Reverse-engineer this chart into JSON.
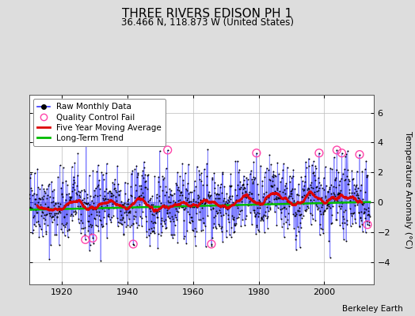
{
  "title": "THREE RIVERS EDISON PH 1",
  "subtitle": "36.466 N, 118.873 W (United States)",
  "ylabel": "Temperature Anomaly (°C)",
  "attribution": "Berkeley Earth",
  "year_start": 1910,
  "year_end": 2014,
  "ylim": [
    -5.5,
    7.2
  ],
  "yticks": [
    -4,
    -2,
    0,
    2,
    4,
    6
  ],
  "xticks": [
    1920,
    1940,
    1960,
    1980,
    2000
  ],
  "xlim_start": 1910,
  "xlim_end": 2015,
  "background_color": "#dddddd",
  "plot_bg_color": "#ffffff",
  "raw_line_color": "#3333ff",
  "raw_dot_color": "#000000",
  "moving_avg_color": "#dd0000",
  "trend_color": "#00bb00",
  "qc_fail_color": "#ff44aa",
  "seed": 42,
  "title_fontsize": 11,
  "subtitle_fontsize": 8.5,
  "ylabel_fontsize": 8,
  "tick_fontsize": 8,
  "legend_fontsize": 7.5,
  "attribution_fontsize": 7.5
}
